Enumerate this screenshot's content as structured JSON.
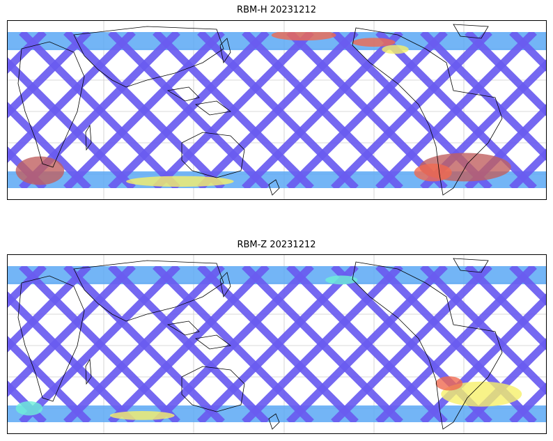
{
  "panels": [
    {
      "id": "h",
      "title": "RBM-H 20231212",
      "hot_spots": [
        {
          "lon": 0.06,
          "lat": 0.84,
          "w": 0.09,
          "h": 0.16,
          "level": 0.95
        },
        {
          "lon": 0.55,
          "lat": 0.08,
          "w": 0.12,
          "h": 0.06,
          "level": 0.85
        },
        {
          "lon": 0.68,
          "lat": 0.12,
          "w": 0.08,
          "h": 0.05,
          "level": 0.8
        },
        {
          "lon": 0.85,
          "lat": 0.82,
          "w": 0.17,
          "h": 0.16,
          "level": 0.98
        },
        {
          "lon": 0.79,
          "lat": 0.85,
          "w": 0.07,
          "h": 0.1,
          "level": 0.85
        },
        {
          "lon": 0.32,
          "lat": 0.9,
          "w": 0.2,
          "h": 0.06,
          "level": 0.6
        },
        {
          "lon": 0.72,
          "lat": 0.16,
          "w": 0.05,
          "h": 0.05,
          "level": 0.6
        }
      ]
    },
    {
      "id": "z",
      "title": "RBM-Z 20231212",
      "hot_spots": [
        {
          "lon": 0.88,
          "lat": 0.78,
          "w": 0.15,
          "h": 0.14,
          "level": 0.6
        },
        {
          "lon": 0.82,
          "lat": 0.72,
          "w": 0.05,
          "h": 0.08,
          "level": 0.75
        },
        {
          "lon": 0.25,
          "lat": 0.9,
          "w": 0.12,
          "h": 0.05,
          "level": 0.55
        },
        {
          "lon": 0.04,
          "lat": 0.86,
          "w": 0.05,
          "h": 0.08,
          "level": 0.45
        },
        {
          "lon": 0.62,
          "lat": 0.14,
          "w": 0.06,
          "h": 0.05,
          "level": 0.4
        }
      ]
    }
  ],
  "colormap": [
    "#6a5cf0",
    "#5aa8f5",
    "#6ef0d8",
    "#f6f06a",
    "#f06a50",
    "#c06060"
  ]
}
